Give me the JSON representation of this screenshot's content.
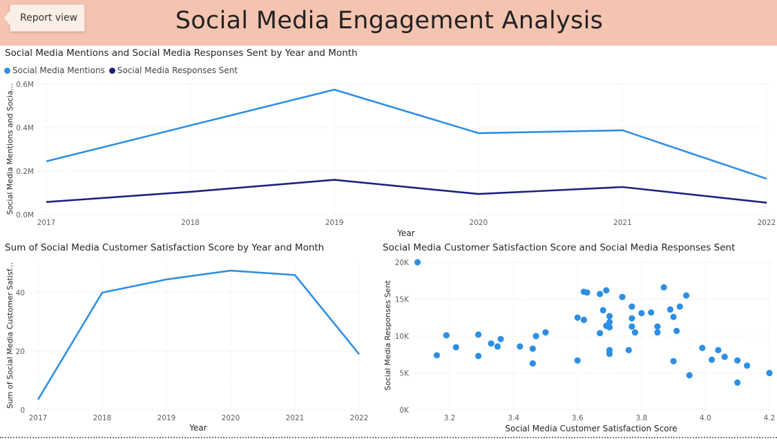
{
  "header": {
    "report_view_label": "Report view",
    "title": "Social Media Engagement Analysis"
  },
  "colors": {
    "mentions": "#2d8fe3",
    "responses": "#1a237e",
    "satisfaction": "#2d8fe3",
    "scatter": "#2d8fe3",
    "header_bg": "#f4c4b0",
    "grid": "#d8d8d8"
  },
  "chart_data": [
    {
      "type": "line",
      "title": "Social Media Mentions and Social Media Responses Sent by Year and Month",
      "xlabel": "Year",
      "ylabel": "Social Media Mentions and Socia...",
      "x": [
        "2017",
        "2018",
        "2019",
        "2020",
        "2021",
        "2022"
      ],
      "series": [
        {
          "name": "Social Media Mentions",
          "values": [
            245000,
            410000,
            575000,
            375000,
            388000,
            165000
          ]
        },
        {
          "name": "Social Media Responses Sent",
          "values": [
            58000,
            105000,
            160000,
            95000,
            127000,
            55000
          ]
        }
      ],
      "yticks": [
        "0.0M",
        "0.2M",
        "0.4M",
        "0.6M"
      ],
      "ylim": [
        0,
        600000
      ],
      "legend": "top-left",
      "grid": true
    },
    {
      "type": "line",
      "title": "Sum of Social Media Customer Satisfaction Score by Year and Month",
      "xlabel": "Year",
      "ylabel": "Sum of Social Media Customer Satisf...",
      "x": [
        "2017",
        "2018",
        "2019",
        "2020",
        "2021",
        "2022"
      ],
      "series": [
        {
          "values": [
            3.5,
            40,
            44.5,
            47.5,
            46,
            19
          ]
        }
      ],
      "yticks": [
        "0",
        "20",
        "40"
      ],
      "ylim": [
        0,
        48
      ],
      "grid": true
    },
    {
      "type": "scatter",
      "title": "Social Media Customer Satisfaction Score and Social Media Responses Sent",
      "xlabel": "Social Media Customer Satisfaction Score",
      "ylabel": "Social Media Responses Sent",
      "xticks": [
        "3.2",
        "3.4",
        "3.6",
        "3.8",
        "4.0",
        "4.2"
      ],
      "yticks": [
        "0K",
        "5K",
        "10K",
        "15K",
        "20K"
      ],
      "xlim": [
        3.09,
        4.2
      ],
      "ylim": [
        0,
        20000
      ],
      "grid": true,
      "points": [
        [
          3.1,
          20000
        ],
        [
          3.16,
          7400
        ],
        [
          3.19,
          10100
        ],
        [
          3.22,
          8500
        ],
        [
          3.29,
          10200
        ],
        [
          3.29,
          7300
        ],
        [
          3.33,
          9000
        ],
        [
          3.35,
          8600
        ],
        [
          3.36,
          9600
        ],
        [
          3.42,
          8600
        ],
        [
          3.46,
          8300
        ],
        [
          3.46,
          6300
        ],
        [
          3.47,
          10000
        ],
        [
          3.5,
          10500
        ],
        [
          3.6,
          12500
        ],
        [
          3.6,
          6700
        ],
        [
          3.62,
          12200
        ],
        [
          3.62,
          16000
        ],
        [
          3.63,
          15900
        ],
        [
          3.67,
          15700
        ],
        [
          3.67,
          10400
        ],
        [
          3.68,
          13500
        ],
        [
          3.69,
          16200
        ],
        [
          3.69,
          11400
        ],
        [
          3.7,
          11900
        ],
        [
          3.7,
          11200
        ],
        [
          3.7,
          12700
        ],
        [
          3.7,
          8100
        ],
        [
          3.7,
          7600
        ],
        [
          3.74,
          15300
        ],
        [
          3.76,
          8100
        ],
        [
          3.77,
          14000
        ],
        [
          3.77,
          12400
        ],
        [
          3.77,
          11300
        ],
        [
          3.78,
          10500
        ],
        [
          3.8,
          13100
        ],
        [
          3.83,
          13200
        ],
        [
          3.85,
          11300
        ],
        [
          3.85,
          10500
        ],
        [
          3.87,
          16600
        ],
        [
          3.89,
          13600
        ],
        [
          3.9,
          12600
        ],
        [
          3.9,
          6600
        ],
        [
          3.91,
          10700
        ],
        [
          3.92,
          14000
        ],
        [
          3.94,
          15500
        ],
        [
          3.95,
          4700
        ],
        [
          3.99,
          8400
        ],
        [
          4.02,
          6800
        ],
        [
          4.04,
          8100
        ],
        [
          4.06,
          7200
        ],
        [
          4.1,
          6700
        ],
        [
          4.1,
          3700
        ],
        [
          4.13,
          6000
        ],
        [
          4.2,
          5000
        ]
      ]
    }
  ]
}
